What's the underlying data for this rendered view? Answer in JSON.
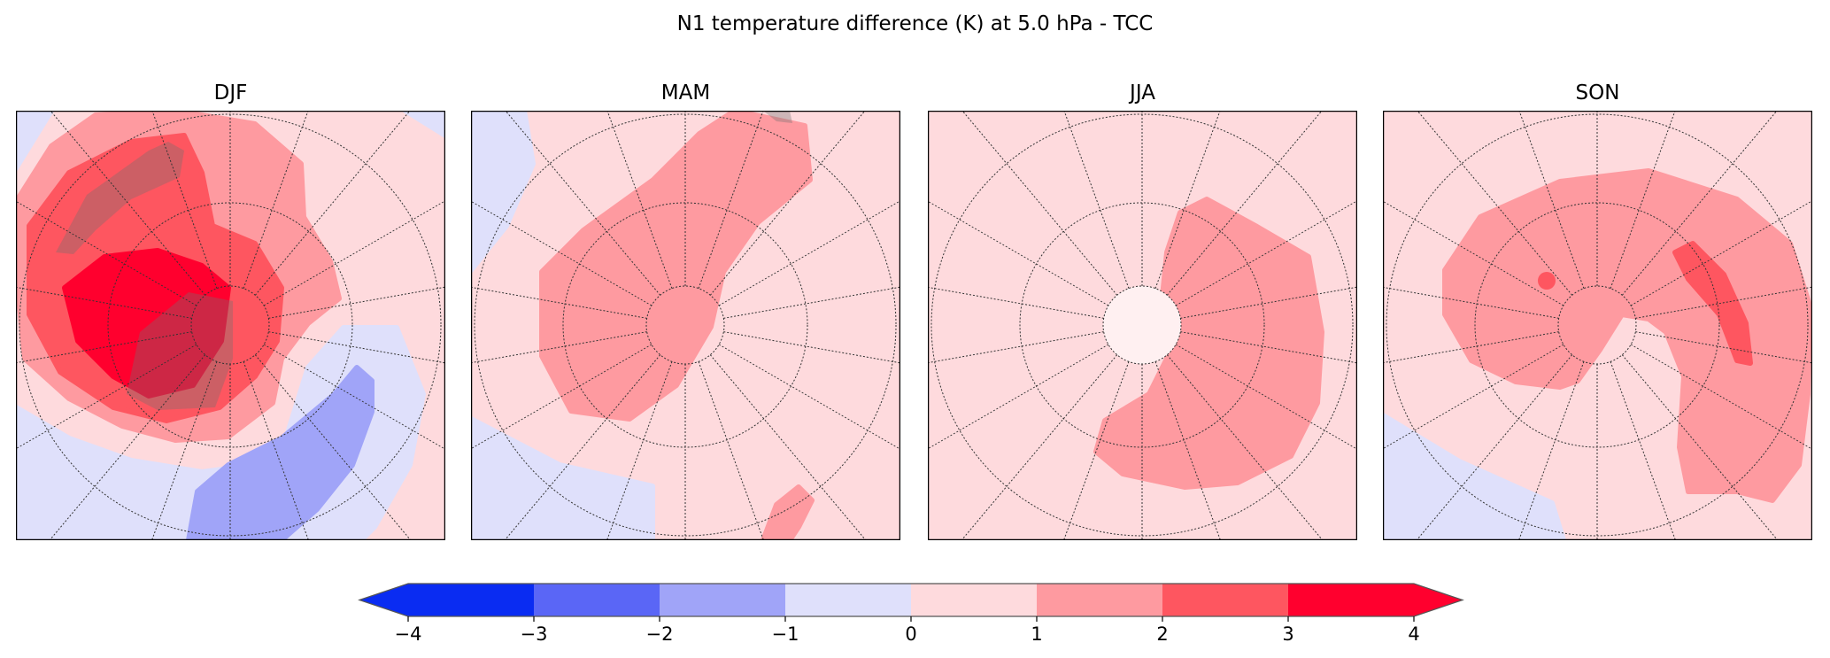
{
  "title": "N1  temperature difference (K) at 5.0 hPa - TCC",
  "panels": [
    {
      "title": "DJF"
    },
    {
      "title": "MAM"
    },
    {
      "title": "JJA"
    },
    {
      "title": "SON"
    }
  ],
  "colorbar": {
    "ticks": [
      "−4",
      "−3",
      "−2",
      "−1",
      "0",
      "1",
      "2",
      "3",
      "4"
    ],
    "levels": [
      -4,
      -3,
      -2,
      -1,
      0,
      1,
      2,
      3,
      4
    ],
    "colors": [
      "#0a2cf2",
      "#5a66f6",
      "#a0a4f8",
      "#dfe0fb",
      "#fedadd",
      "#fe9aa0",
      "#fe5660",
      "#ff002e"
    ],
    "extend": "both"
  },
  "chart_data": {
    "type": "heatmap",
    "title": "N1  temperature difference (K) at 5.0 hPa - TCC",
    "projection": "north polar stereographic",
    "subplots": [
      "DJF",
      "MAM",
      "JJA",
      "SON"
    ],
    "colorbar_range": [
      -4,
      4
    ],
    "colorbar_levels": [
      -4,
      -3,
      -2,
      -1,
      0,
      1,
      2,
      3,
      4
    ],
    "units": "K",
    "summary": {
      "DJF": {
        "max_bin": "3 to 4",
        "min_bin": "-2 to -1"
      },
      "MAM": {
        "max_bin": "1 to 2",
        "min_bin": "-1 to 0"
      },
      "JJA": {
        "max_bin": "1 to 2",
        "min_bin": "0 to 1"
      },
      "SON": {
        "max_bin": "2 to 3",
        "min_bin": "-1 to 0"
      }
    }
  }
}
